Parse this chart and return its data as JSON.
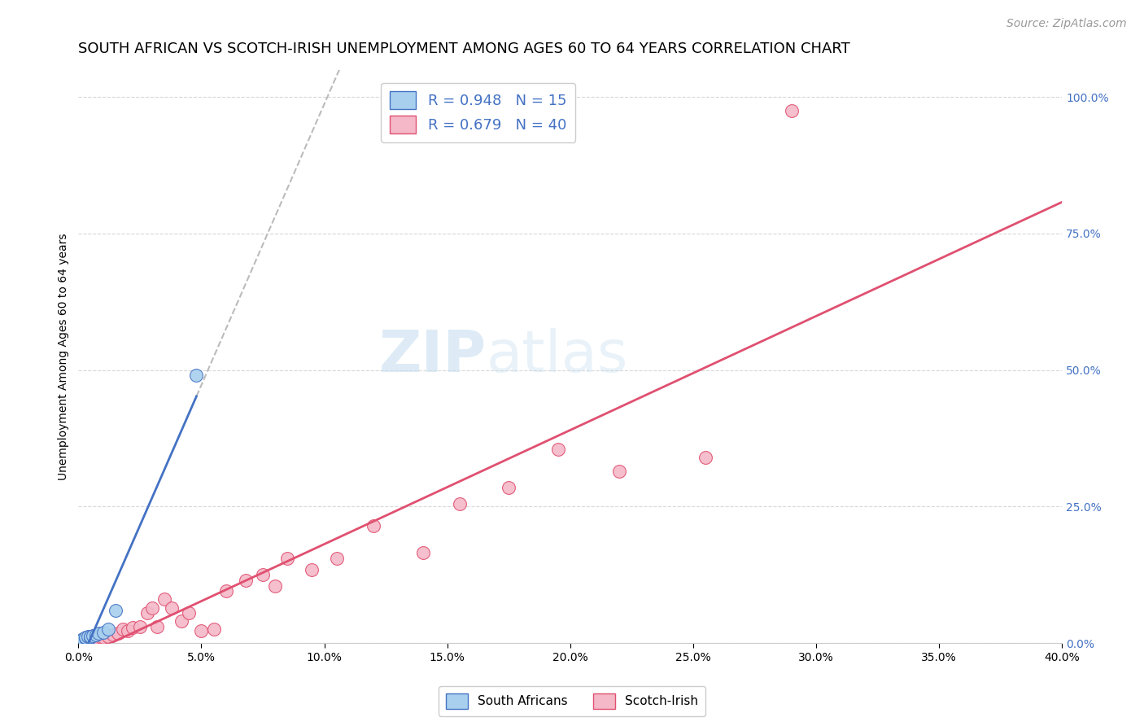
{
  "title": "SOUTH AFRICAN VS SCOTCH-IRISH UNEMPLOYMENT AMONG AGES 60 TO 64 YEARS CORRELATION CHART",
  "source": "Source: ZipAtlas.com",
  "ylabel": "Unemployment Among Ages 60 to 64 years",
  "xlim": [
    0.0,
    0.4
  ],
  "ylim": [
    0.0,
    1.05
  ],
  "xticks": [
    0.0,
    0.05,
    0.1,
    0.15,
    0.2,
    0.25,
    0.3,
    0.35,
    0.4
  ],
  "yticks_right": [
    0.0,
    0.25,
    0.5,
    0.75,
    1.0
  ],
  "south_african_x": [
    0.001,
    0.002,
    0.002,
    0.003,
    0.003,
    0.004,
    0.005,
    0.005,
    0.006,
    0.007,
    0.008,
    0.01,
    0.012,
    0.015,
    0.048
  ],
  "south_african_y": [
    0.005,
    0.007,
    0.008,
    0.009,
    0.01,
    0.012,
    0.01,
    0.012,
    0.013,
    0.015,
    0.018,
    0.02,
    0.025,
    0.06,
    0.49
  ],
  "scotch_irish_x": [
    0.002,
    0.003,
    0.004,
    0.005,
    0.006,
    0.007,
    0.008,
    0.009,
    0.01,
    0.012,
    0.014,
    0.016,
    0.018,
    0.02,
    0.022,
    0.025,
    0.028,
    0.03,
    0.032,
    0.035,
    0.038,
    0.042,
    0.045,
    0.05,
    0.055,
    0.06,
    0.068,
    0.075,
    0.08,
    0.085,
    0.095,
    0.105,
    0.12,
    0.14,
    0.155,
    0.175,
    0.195,
    0.22,
    0.255,
    0.29
  ],
  "scotch_irish_y": [
    0.005,
    0.004,
    0.005,
    0.005,
    0.007,
    0.008,
    0.008,
    0.01,
    0.01,
    0.012,
    0.015,
    0.018,
    0.025,
    0.022,
    0.028,
    0.03,
    0.055,
    0.065,
    0.03,
    0.08,
    0.065,
    0.04,
    0.055,
    0.022,
    0.025,
    0.095,
    0.115,
    0.125,
    0.105,
    0.155,
    0.135,
    0.155,
    0.215,
    0.165,
    0.255,
    0.285,
    0.355,
    0.315,
    0.34,
    0.975
  ],
  "sa_R": 0.948,
  "sa_N": 15,
  "si_R": 0.679,
  "si_N": 40,
  "sa_color": "#a8d0ee",
  "si_color": "#f4b8c8",
  "sa_line_color": "#4472c4",
  "si_line_color": "#e05070",
  "dash_line_color": "#bbbbbb",
  "legend_text_color": "#4472c4",
  "right_axis_color": "#4472c4",
  "background_color": "#ffffff",
  "grid_color": "#d8d8d8",
  "title_fontsize": 13,
  "source_fontsize": 10,
  "label_fontsize": 10,
  "tick_fontsize": 10,
  "legend_fontsize": 13
}
